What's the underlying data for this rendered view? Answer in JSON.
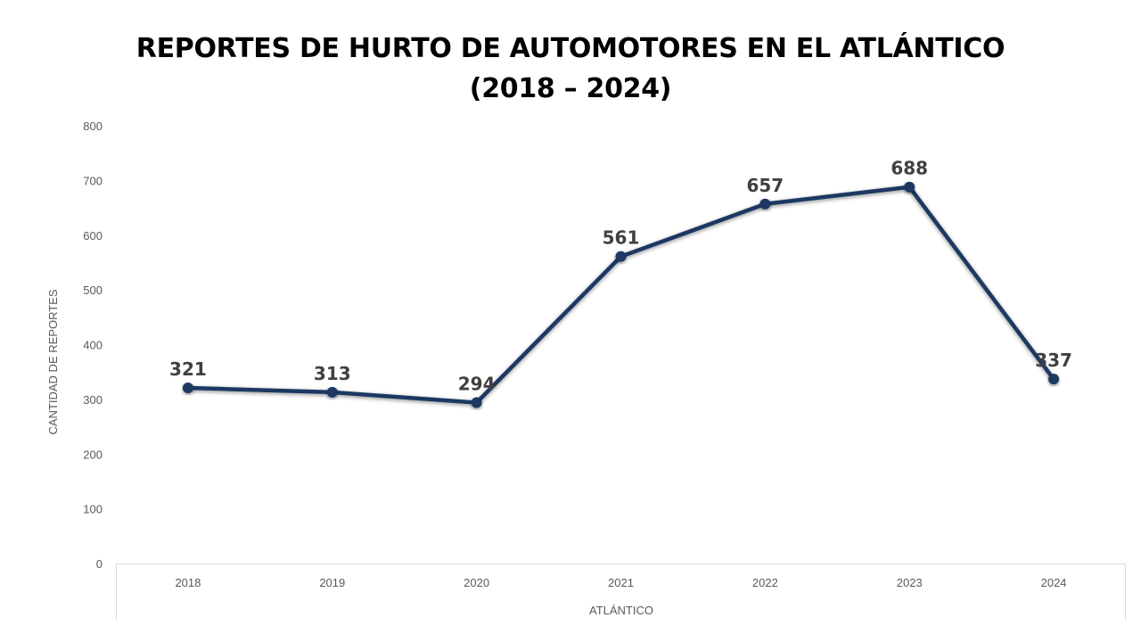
{
  "chart_data": {
    "type": "line",
    "title": [
      "REPORTES DE HURTO DE AUTOMOTORES EN EL ATLÁNTICO",
      "(2018 – 2024)"
    ],
    "categories": [
      "2018",
      "2019",
      "2020",
      "2021",
      "2022",
      "2023",
      "2024"
    ],
    "series": [
      {
        "values": [
          321,
          313,
          294,
          561,
          657,
          688,
          337
        ]
      }
    ],
    "ylabel": "CANTIDAD DE REPORTES",
    "xlabel": "ATLÁNTICO",
    "ylim": [
      0,
      800
    ],
    "yticks": [
      "0",
      "100",
      "200",
      "300",
      "400",
      "500",
      "600",
      "700",
      "800"
    ],
    "grid": false,
    "legend": "none",
    "line_color": "#1F3864",
    "data_labels": true
  }
}
